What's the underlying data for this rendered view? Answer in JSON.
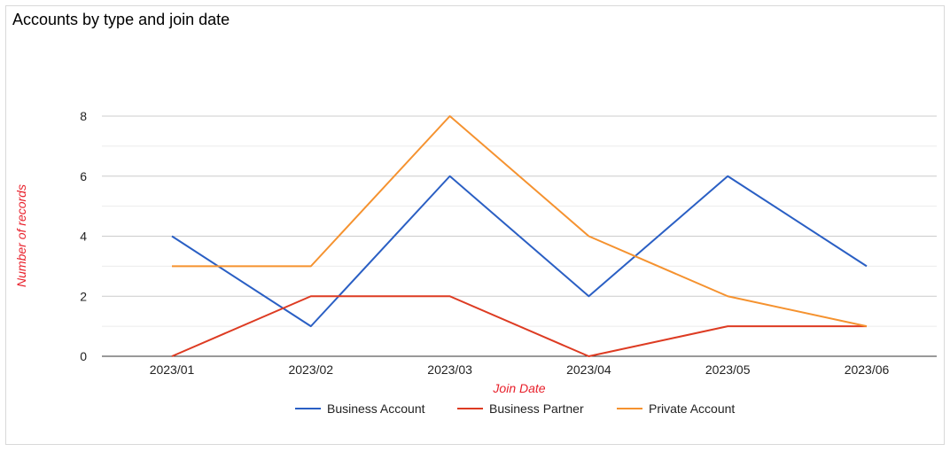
{
  "chart_data": {
    "type": "line",
    "title": "Accounts by type and join date",
    "xlabel": "Join Date",
    "ylabel": "Number of records",
    "axis_title_color": "#e8202b",
    "categories": [
      "2023/01",
      "2023/02",
      "2023/03",
      "2023/04",
      "2023/05",
      "2023/06"
    ],
    "ylim": [
      0,
      8
    ],
    "yticks": [
      0,
      2,
      4,
      6,
      8
    ],
    "minor_grid_step": 1,
    "grid": true,
    "legend_position": "bottom",
    "series": [
      {
        "name": "Business Account",
        "color": "#2a5fc4",
        "values": [
          4,
          1,
          6,
          2,
          6,
          3
        ]
      },
      {
        "name": "Business Partner",
        "color": "#dd3b22",
        "values": [
          0,
          2,
          2,
          0,
          1,
          1
        ]
      },
      {
        "name": "Private Account",
        "color": "#f5922f",
        "values": [
          3,
          3,
          8,
          4,
          2,
          1
        ]
      }
    ]
  }
}
